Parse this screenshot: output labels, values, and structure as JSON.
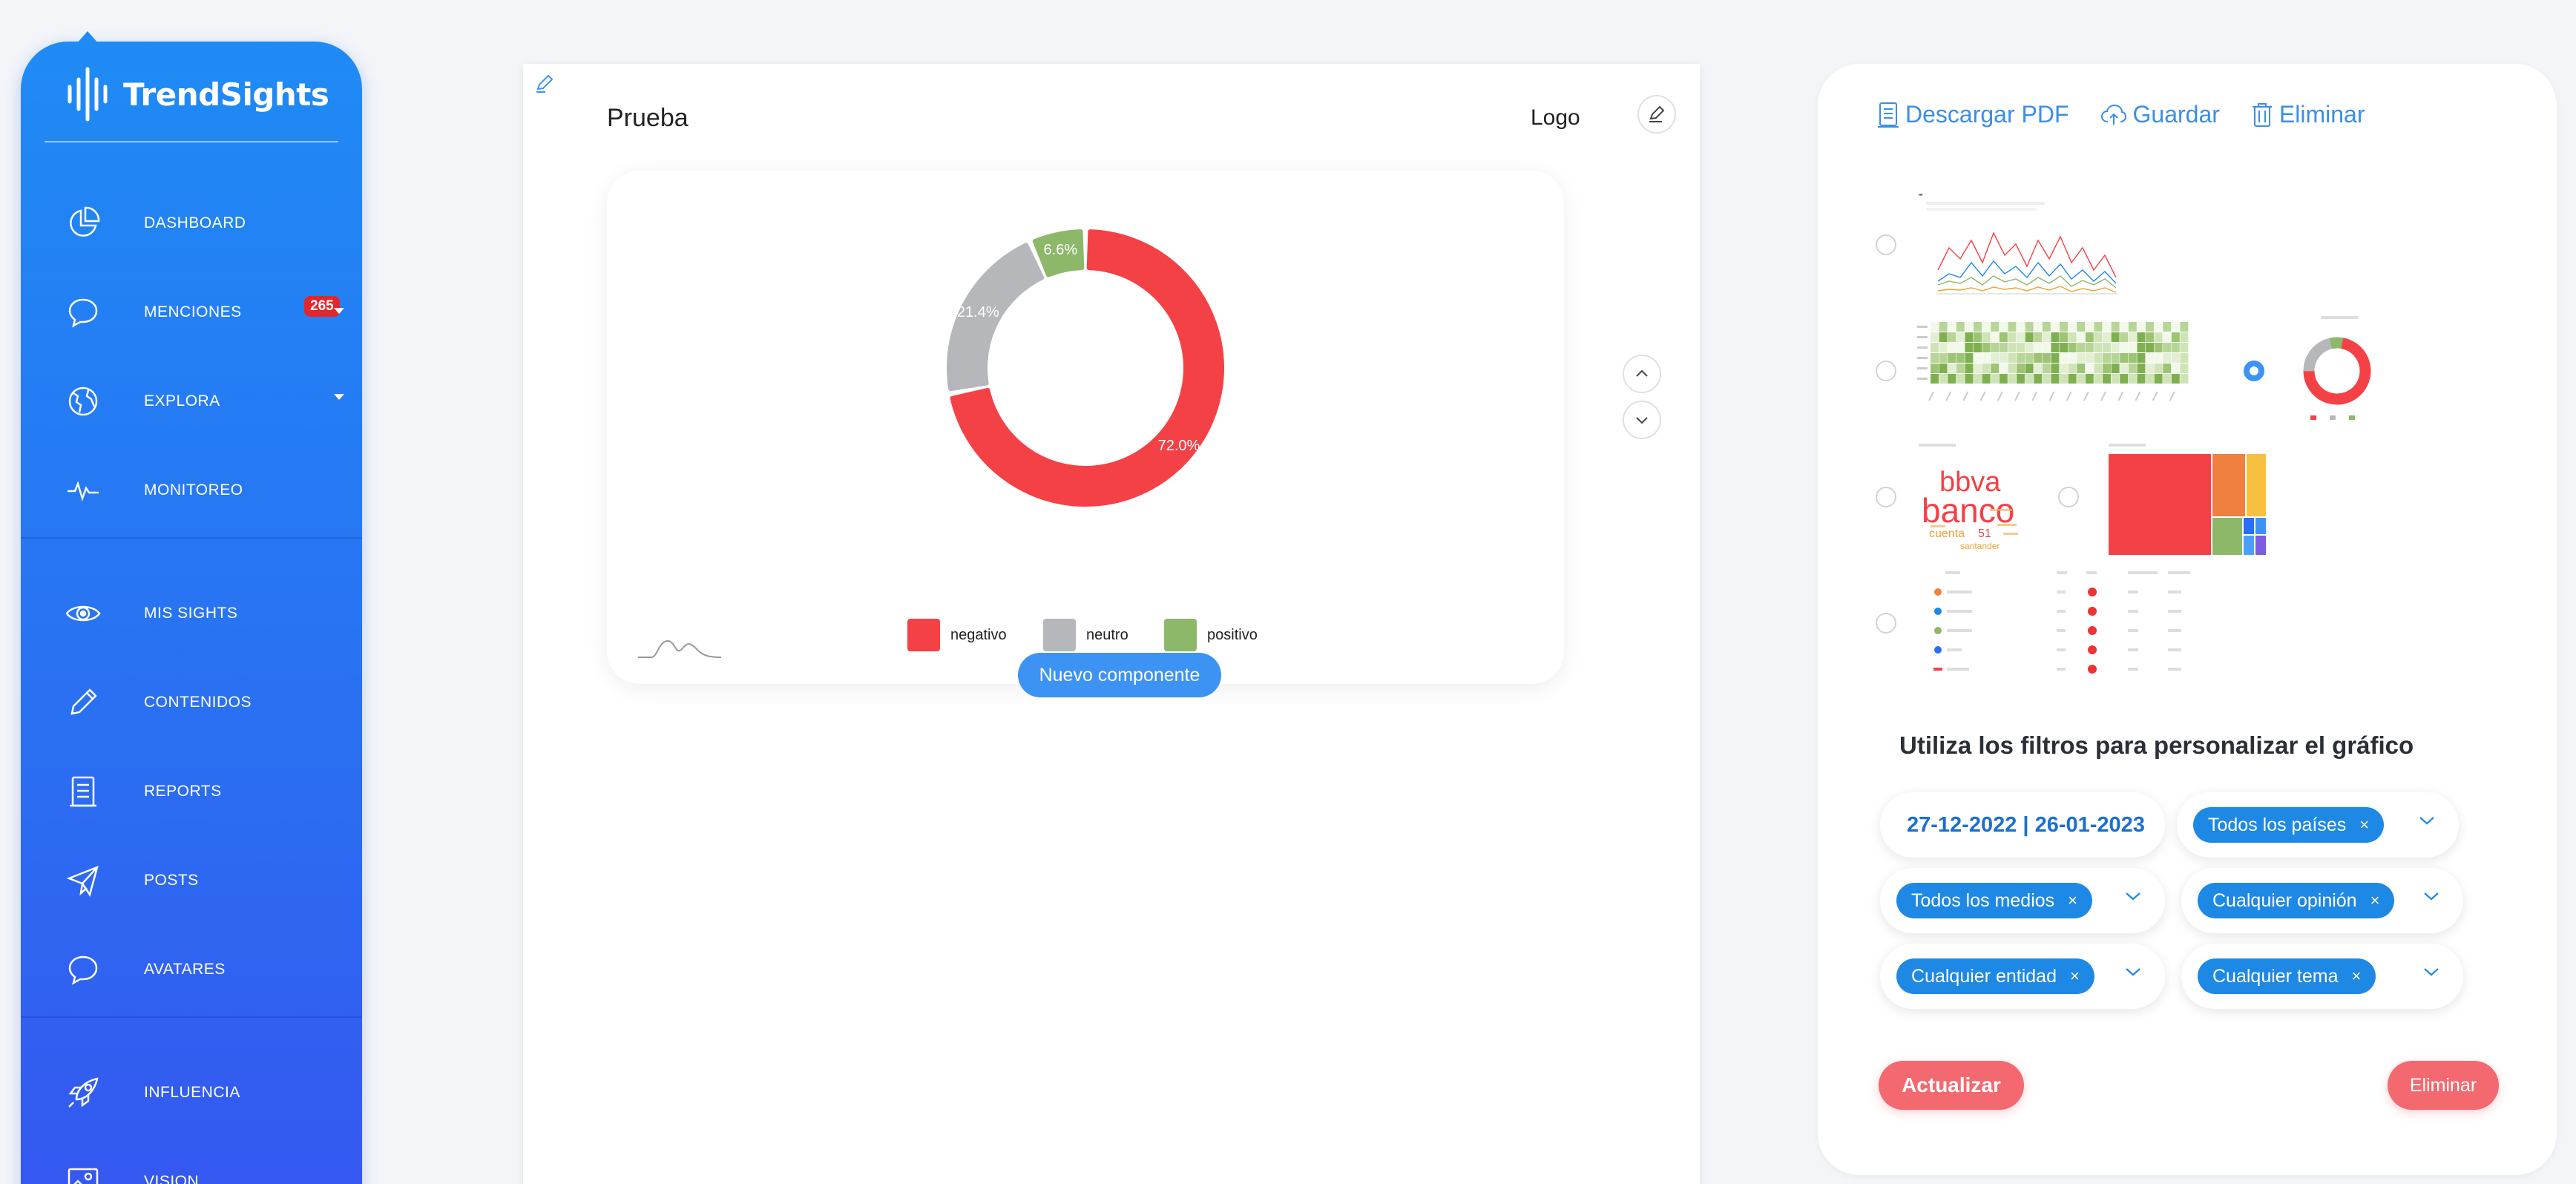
{
  "brand": {
    "name": "TrendSights"
  },
  "sidebar": {
    "items": [
      {
        "label": "DASHBOARD",
        "icon": "pie-chart-icon"
      },
      {
        "label": "MENCIONES",
        "icon": "chat-bubble-icon",
        "badge": "265"
      },
      {
        "label": "EXPLORA",
        "icon": "globe-icon"
      },
      {
        "label": "MONITOREO",
        "icon": "pulse-icon"
      },
      {
        "label": "MIS SIGHTS",
        "icon": "eye-icon"
      },
      {
        "label": "CONTENIDOS",
        "icon": "pencil-icon"
      },
      {
        "label": "REPORTS",
        "icon": "document-icon"
      },
      {
        "label": "POSTS",
        "icon": "paper-plane-icon"
      },
      {
        "label": "AVATARES",
        "icon": "chat-bubble-icon"
      },
      {
        "label": "INFLUENCIA",
        "icon": "rocket-icon"
      },
      {
        "label": "VISION",
        "icon": "image-icon"
      }
    ]
  },
  "editor": {
    "title": "Prueba",
    "logo_label": "Logo",
    "new_component_label": "Nuevo componente"
  },
  "chart_data": {
    "type": "pie",
    "variant": "donut",
    "categories": [
      "negativo",
      "neutro",
      "positivo"
    ],
    "values": [
      72.0,
      21.4,
      6.6
    ],
    "labels": [
      "72.0%",
      "21.4%",
      "6.6%"
    ],
    "colors": [
      "#f44146",
      "#b5b7bb",
      "#8db86a"
    ],
    "legend_position": "bottom"
  },
  "toolbar": {
    "download_label": "Descargar PDF",
    "save_label": "Guardar",
    "delete_label": "Eliminar"
  },
  "thumbnails": {
    "wordcloud_words": [
      "bbva",
      "banco",
      "cuenta",
      "santander"
    ]
  },
  "filters": {
    "title": "Utiliza los filtros para personalizar el gráfico",
    "date_range": "27-12-2022 | 26-01-2023",
    "countries": "Todos los países",
    "media": "Todos los medios",
    "opinion": "Cualquier opinión",
    "entity": "Cualquier entidad",
    "topic": "Cualquier tema",
    "chip_close": "×"
  },
  "actions": {
    "update_label": "Actualizar",
    "delete_label": "Eliminar"
  }
}
